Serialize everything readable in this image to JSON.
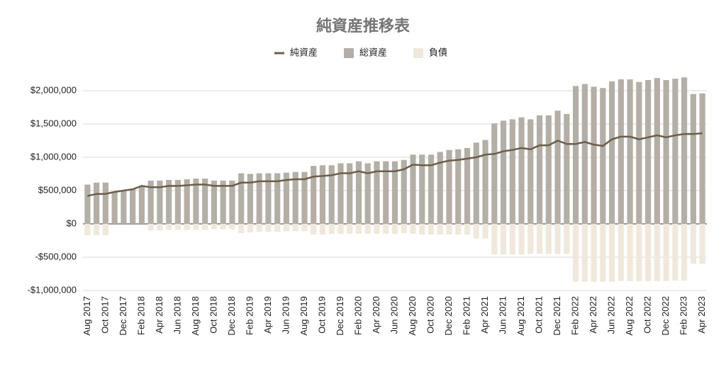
{
  "chart_data": {
    "type": "bar",
    "title": "純資産推移表",
    "legend": "top",
    "grid": true,
    "categories": [
      "Aug 2017",
      null,
      "Oct 2017",
      null,
      "Dec 2017",
      null,
      "Feb 2018",
      null,
      "Apr 2018",
      null,
      "Jun 2018",
      null,
      "Aug 2018",
      null,
      "Oct 2018",
      null,
      "Dec 2018",
      null,
      "Feb 2019",
      null,
      "Apr 2019",
      null,
      "Jun 2019",
      null,
      "Aug 2019",
      null,
      "Oct 2019",
      null,
      "Dec 2019",
      null,
      "Feb 2020",
      null,
      "Apr 2020",
      null,
      "Jun 2020",
      null,
      "Aug 2020",
      null,
      "Oct 2020",
      null,
      "Dec 2020",
      null,
      "Feb 2021",
      null,
      "Apr 2021",
      null,
      "Jun 2021",
      null,
      "Aug 2021",
      null,
      "Oct 2021",
      null,
      "Dec 2021",
      null,
      "Feb 2022",
      null,
      "Apr 2022",
      null,
      "Jun 2022",
      null,
      "Aug 2022",
      null,
      "Oct 2022",
      null,
      "Dec 2022",
      null,
      "Feb 2023",
      null,
      "Apr 2023"
    ],
    "series": [
      {
        "name": "純資産",
        "type": "line",
        "color": "#6d5d4b",
        "values": [
          420000,
          450000,
          450000,
          480000,
          500000,
          520000,
          570000,
          550000,
          550000,
          570000,
          570000,
          580000,
          590000,
          590000,
          570000,
          570000,
          570000,
          620000,
          620000,
          640000,
          640000,
          640000,
          660000,
          670000,
          670000,
          710000,
          720000,
          730000,
          760000,
          760000,
          790000,
          760000,
          790000,
          790000,
          790000,
          820000,
          890000,
          880000,
          880000,
          920000,
          950000,
          960000,
          980000,
          1000000,
          1040000,
          1050000,
          1090000,
          1110000,
          1140000,
          1120000,
          1180000,
          1180000,
          1250000,
          1200000,
          1200000,
          1230000,
          1190000,
          1170000,
          1270000,
          1310000,
          1310000,
          1270000,
          1300000,
          1330000,
          1300000,
          1330000,
          1350000,
          1350000,
          1360000
        ]
      },
      {
        "name": "総資産",
        "type": "bar",
        "color": "#b3afa6",
        "values": [
          590000,
          620000,
          620000,
          480000,
          500000,
          520000,
          570000,
          650000,
          650000,
          660000,
          660000,
          670000,
          680000,
          680000,
          650000,
          650000,
          650000,
          760000,
          750000,
          760000,
          760000,
          760000,
          770000,
          780000,
          780000,
          870000,
          880000,
          880000,
          910000,
          910000,
          940000,
          910000,
          940000,
          940000,
          940000,
          960000,
          1040000,
          1040000,
          1040000,
          1080000,
          1110000,
          1120000,
          1140000,
          1220000,
          1260000,
          1510000,
          1550000,
          1570000,
          1600000,
          1570000,
          1630000,
          1630000,
          1700000,
          1650000,
          2070000,
          2100000,
          2060000,
          2040000,
          2140000,
          2170000,
          2170000,
          2130000,
          2160000,
          2190000,
          2160000,
          2180000,
          2200000,
          1950000,
          1960000
        ]
      },
      {
        "name": "負債",
        "type": "bar",
        "color": "#f0e8dc",
        "values": [
          -170000,
          -170000,
          -170000,
          0,
          0,
          0,
          0,
          -100000,
          -100000,
          -90000,
          -90000,
          -90000,
          -90000,
          -90000,
          -80000,
          -80000,
          -80000,
          -140000,
          -130000,
          -120000,
          -120000,
          -120000,
          -110000,
          -110000,
          -110000,
          -160000,
          -160000,
          -150000,
          -150000,
          -150000,
          -150000,
          -150000,
          -150000,
          -150000,
          -150000,
          -140000,
          -150000,
          -160000,
          -160000,
          -160000,
          -160000,
          -160000,
          -160000,
          -220000,
          -220000,
          -460000,
          -460000,
          -460000,
          -460000,
          -450000,
          -450000,
          -450000,
          -450000,
          -450000,
          -870000,
          -870000,
          -870000,
          -870000,
          -870000,
          -860000,
          -860000,
          -860000,
          -860000,
          -860000,
          -860000,
          -850000,
          -850000,
          -600000,
          -600000
        ]
      }
    ],
    "ylim": [
      -1000000,
      2250000
    ],
    "yticks": [
      {
        "value": -1000000,
        "label": "-$1,000,000"
      },
      {
        "value": -500000,
        "label": "-$500,000"
      },
      {
        "value": 0,
        "label": "$0"
      },
      {
        "value": 500000,
        "label": "$500,000"
      },
      {
        "value": 1000000,
        "label": "$1,000,000"
      },
      {
        "value": 1500000,
        "label": "$1,500,000"
      },
      {
        "value": 2000000,
        "label": "$2,000,000"
      }
    ]
  }
}
